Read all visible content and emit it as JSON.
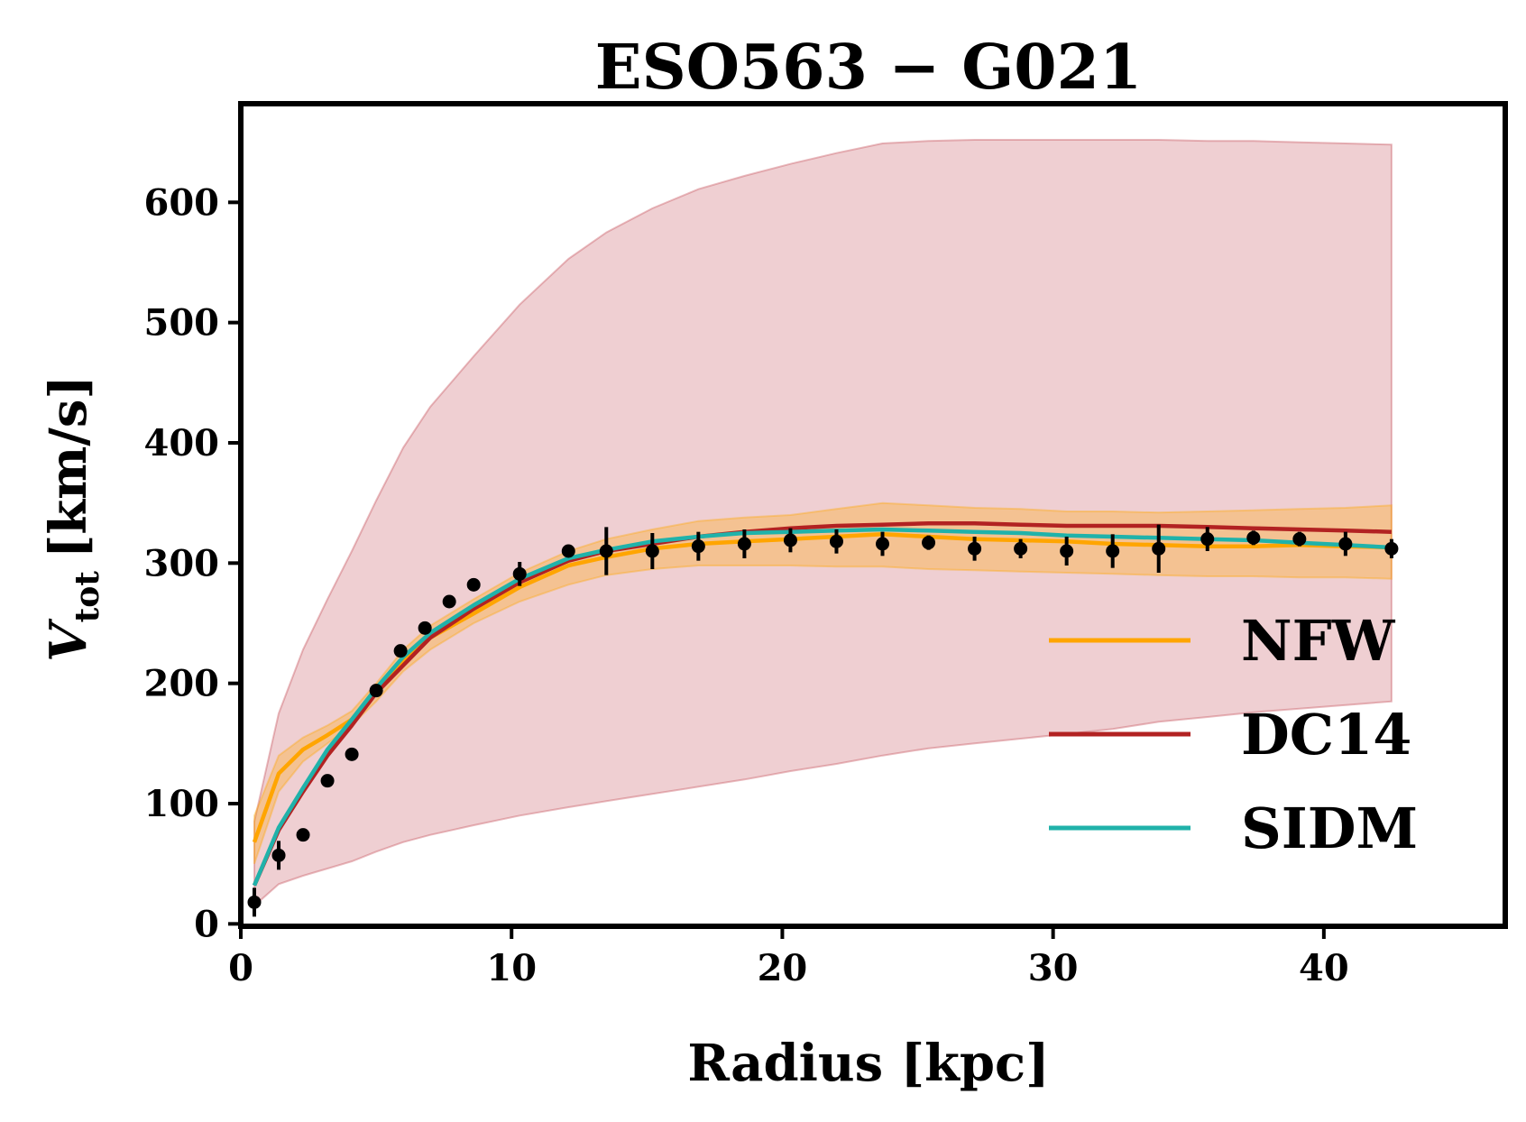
{
  "chart_data": {
    "type": "line",
    "title": "ESO563 − G021",
    "xlabel": "Radius [kpc]",
    "ylabel_main": "V",
    "ylabel_sub": "tot",
    "ylabel_unit": "[km/s]",
    "xlim": [
      0,
      46.7
    ],
    "ylim": [
      -2,
      682
    ],
    "xticks": [
      0,
      10,
      20,
      30,
      40
    ],
    "yticks": [
      0,
      100,
      200,
      300,
      400,
      500,
      600
    ],
    "legend_position": "center-right",
    "grid": false,
    "colors": {
      "NFW": "#FFA500",
      "DC14": "#B22222",
      "SIDM": "#20B2AA",
      "band_wide": "#C0404A",
      "points": "#000000"
    },
    "observed": {
      "name": "",
      "x": [
        0.5,
        1.4,
        2.3,
        3.2,
        4.1,
        5.0,
        5.9,
        6.8,
        7.7,
        8.6,
        10.3,
        12.1,
        13.5,
        15.2,
        16.9,
        18.6,
        20.3,
        22.0,
        23.7,
        25.4,
        27.1,
        28.8,
        30.5,
        32.2,
        33.9,
        35.7,
        37.4,
        39.1,
        40.8,
        42.5
      ],
      "y": [
        18,
        57,
        74,
        119,
        141,
        194,
        227,
        246,
        268,
        282,
        291,
        310,
        310,
        310,
        314,
        316,
        319,
        318,
        316,
        317,
        312,
        312,
        310,
        310,
        312,
        320,
        321,
        320,
        316,
        312
      ],
      "err": [
        12,
        12,
        5,
        5,
        5,
        5,
        5,
        5,
        5,
        5,
        10,
        5,
        20,
        15,
        12,
        12,
        10,
        10,
        10,
        6,
        10,
        8,
        12,
        14,
        20,
        10,
        6,
        6,
        10,
        8
      ]
    },
    "series": [
      {
        "name": "NFW",
        "x": [
          0.5,
          1.4,
          2.3,
          3.2,
          4.1,
          5.0,
          6.0,
          7.0,
          8.6,
          10.3,
          12.1,
          13.5,
          15.2,
          16.9,
          18.6,
          20.3,
          22.0,
          23.7,
          25.4,
          27.1,
          28.8,
          30.5,
          32.2,
          33.9,
          35.7,
          37.4,
          39.1,
          40.8,
          42.5
        ],
        "y": [
          68,
          125,
          145,
          157,
          170,
          192,
          218,
          238,
          258,
          280,
          298,
          305,
          312,
          316,
          318,
          320,
          322,
          324,
          322,
          320,
          319,
          318,
          316,
          315,
          314,
          314,
          315,
          314,
          313
        ],
        "band_lo": [
          50,
          110,
          135,
          150,
          165,
          185,
          210,
          228,
          250,
          268,
          282,
          290,
          295,
          298,
          298,
          298,
          297,
          297,
          295,
          294,
          293,
          292,
          291,
          290,
          289,
          289,
          288,
          288,
          287
        ],
        "band_hi": [
          90,
          140,
          155,
          165,
          177,
          200,
          228,
          248,
          270,
          292,
          310,
          320,
          328,
          335,
          338,
          340,
          345,
          350,
          348,
          346,
          345,
          343,
          343,
          342,
          343,
          344,
          345,
          346,
          348
        ]
      },
      {
        "name": "DC14",
        "x": [
          0.5,
          1.4,
          2.3,
          3.2,
          4.1,
          5.0,
          6.0,
          7.0,
          8.6,
          10.3,
          12.1,
          13.5,
          15.2,
          16.9,
          18.6,
          20.3,
          22.0,
          23.7,
          25.4,
          27.1,
          28.8,
          30.5,
          32.2,
          33.9,
          35.7,
          37.4,
          39.1,
          40.8,
          42.5
        ],
        "y": [
          32,
          78,
          110,
          140,
          165,
          192,
          215,
          238,
          262,
          284,
          302,
          310,
          316,
          322,
          326,
          329,
          331,
          332,
          333,
          333,
          332,
          331,
          331,
          331,
          330,
          329,
          328,
          327,
          326
        ],
        "band_lo": [
          15,
          33,
          40,
          46,
          52,
          60,
          68,
          74,
          82,
          90,
          97,
          102,
          108,
          114,
          120,
          127,
          133,
          140,
          146,
          150,
          154,
          158,
          162,
          168,
          172,
          176,
          179,
          182,
          185
        ],
        "band_hi": [
          85,
          175,
          228,
          270,
          310,
          352,
          396,
          430,
          472,
          515,
          553,
          575,
          595,
          611,
          622,
          632,
          641,
          649,
          651,
          652,
          652,
          652,
          652,
          652,
          651,
          651,
          650,
          649,
          648
        ]
      },
      {
        "name": "SIDM",
        "x": [
          0.5,
          1.4,
          2.3,
          3.2,
          4.1,
          5.0,
          6.0,
          7.0,
          8.6,
          10.3,
          12.1,
          13.5,
          15.2,
          16.9,
          18.6,
          20.3,
          22.0,
          23.7,
          25.4,
          27.1,
          28.8,
          30.5,
          32.2,
          33.9,
          35.7,
          37.4,
          39.1,
          40.8,
          42.5
        ],
        "y": [
          32,
          80,
          113,
          145,
          170,
          196,
          222,
          242,
          265,
          287,
          304,
          311,
          318,
          322,
          325,
          326,
          327,
          328,
          327,
          326,
          325,
          323,
          322,
          321,
          320,
          319,
          317,
          315,
          313
        ]
      }
    ]
  }
}
